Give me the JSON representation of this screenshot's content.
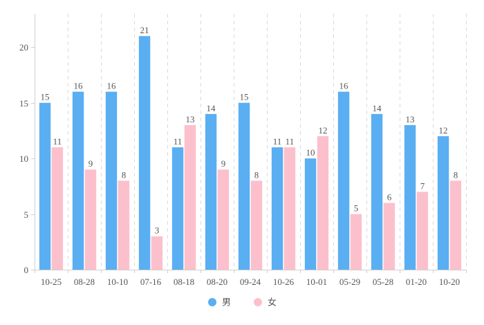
{
  "chart_data": {
    "type": "bar",
    "title": "",
    "xlabel": "",
    "ylabel": "",
    "categories": [
      "10-25",
      "08-28",
      "10-10",
      "07-16",
      "08-18",
      "08-20",
      "09-24",
      "10-26",
      "10-01",
      "05-29",
      "05-28",
      "01-20",
      "10-20"
    ],
    "series": [
      {
        "name": "男",
        "color": "#5aaef2",
        "values": [
          15,
          16,
          16,
          21,
          11,
          14,
          15,
          11,
          10,
          16,
          14,
          13,
          12
        ]
      },
      {
        "name": "女",
        "color": "#fcc0cc",
        "values": [
          11,
          9,
          8,
          3,
          13,
          9,
          8,
          11,
          12,
          5,
          6,
          7,
          8
        ]
      }
    ],
    "ylim": [
      0,
      23
    ],
    "yticks": [
      0,
      5,
      10,
      15,
      20
    ],
    "grid": {
      "vertical_dashed": true,
      "horizontal": false
    },
    "legend_position": "bottom-center",
    "data_labels": true
  }
}
